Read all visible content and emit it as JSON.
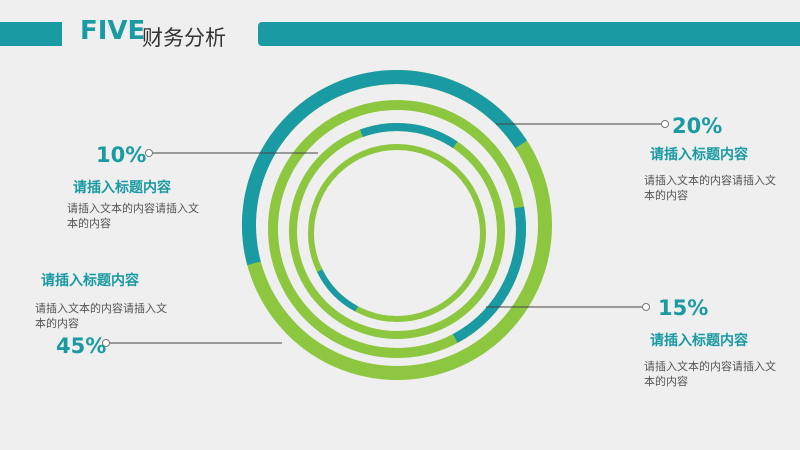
{
  "header": {
    "title_en": "FIVE",
    "title_cn": "财务分析"
  },
  "colors": {
    "accent": "#1a9aa2",
    "ring": "#8dc63f",
    "line": "#444444"
  },
  "chart_data": {
    "type": "radial-bar",
    "title": "",
    "series": [
      {
        "value": 45,
        "heading": "请插入标题内容",
        "text": "请插入文本的内容请插入文本的内容"
      },
      {
        "value": 20,
        "heading": "请插入标题内容",
        "text": "请插入文本的内容请插入文本的内容"
      },
      {
        "value": 15,
        "heading": "请插入标题内容",
        "text": "请插入文本的内容请插入文本的内容"
      },
      {
        "value": 10,
        "heading": "请插入标题内容",
        "text": "请插入文本的内容请插入文本的内容"
      }
    ]
  },
  "labels": {
    "p10": "10%",
    "p20": "20%",
    "p15": "15%",
    "p45": "45%",
    "h10": "请插入标题内容",
    "h20": "请插入标题内容",
    "h15": "请插入标题内容",
    "h45": "请插入标题内容",
    "d10": "请插入文本的内容请插入文本的内容",
    "d20": "请插入文本的内容请插入文本的内容",
    "d15": "请插入文本的内容请插入文本的内容",
    "d45": "请插入文本的内容请插入文本的内容"
  }
}
